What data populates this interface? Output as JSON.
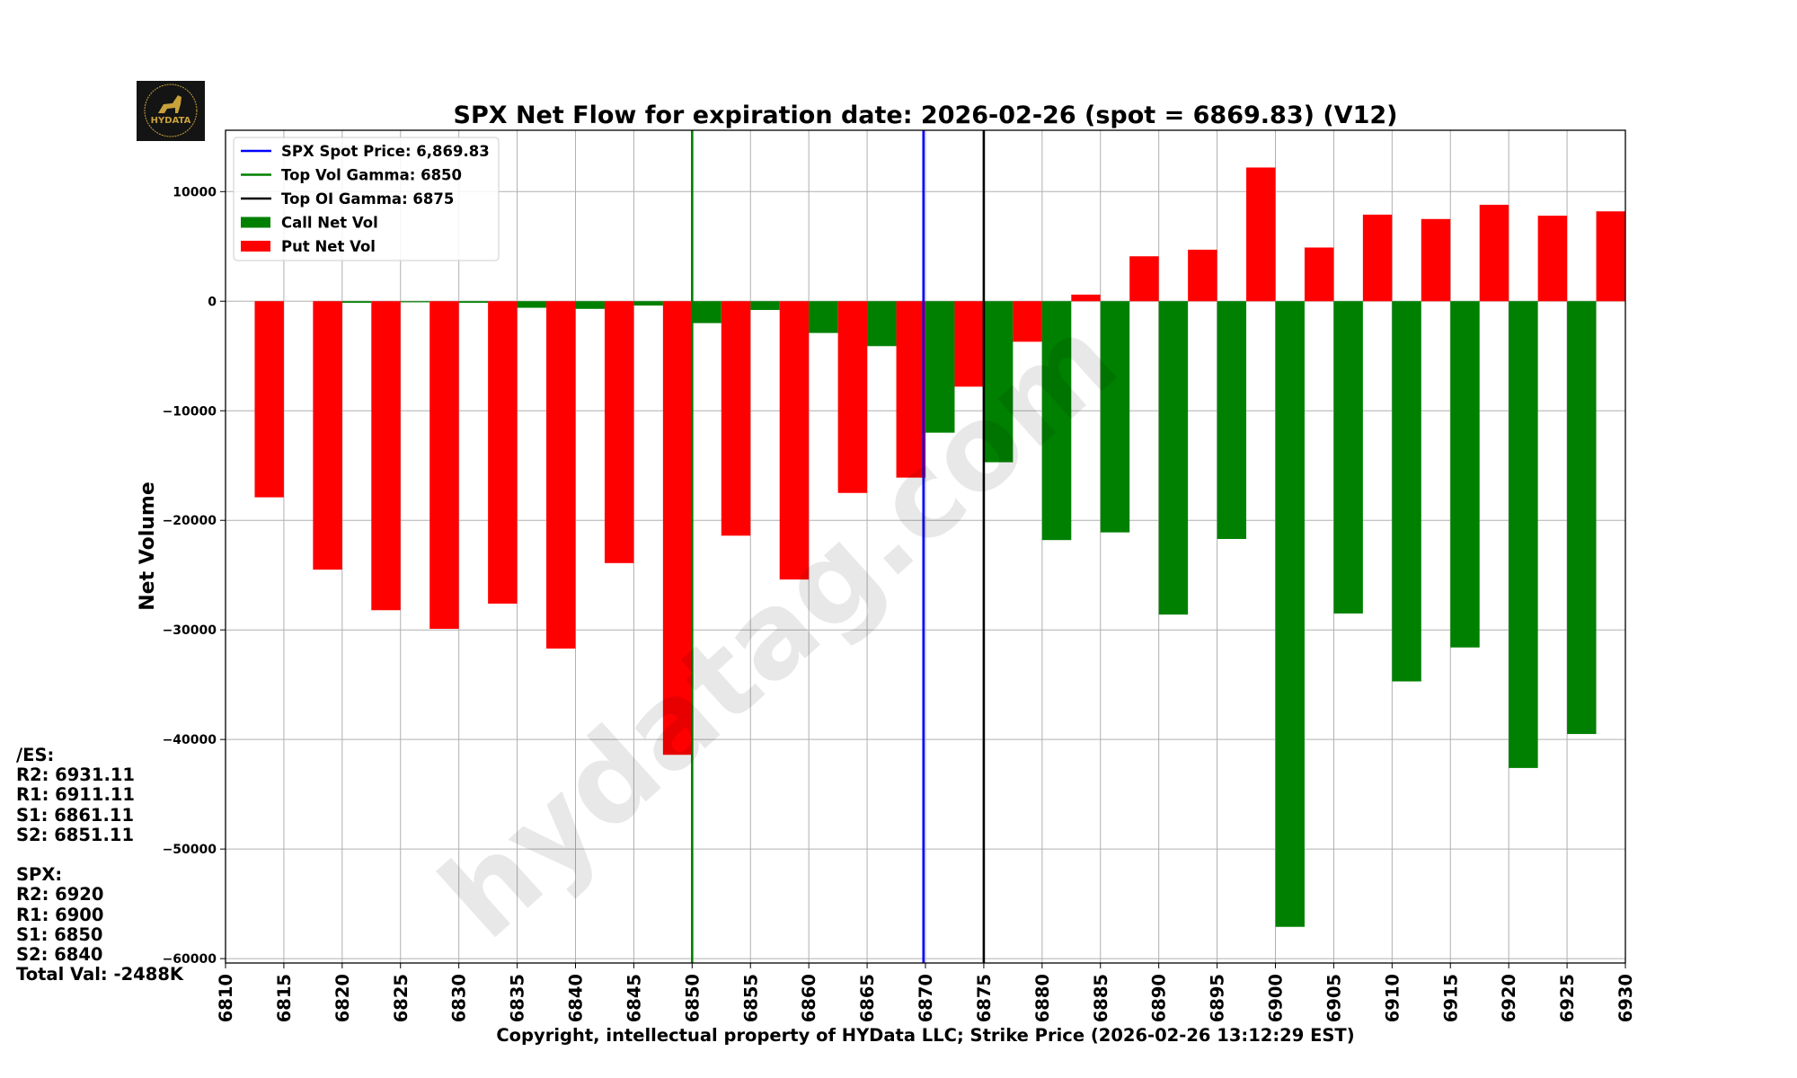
{
  "logo_text": "HYDATA",
  "watermark": "hydatag.com",
  "chart_data": {
    "type": "bar",
    "title": "SPX Net Flow for expiration date: 2026-02-26 (spot = 6869.83) (V12)",
    "xlabel": "Copyright, intellectual property of HYData LLC; Strike Price (2026-02-26 13:12:29 EST)",
    "ylabel": "Net Volume",
    "xlim": [
      6810,
      6930
    ],
    "ylim": [
      -60400,
      15600
    ],
    "xticks": [
      "6810",
      "6815",
      "6820",
      "6825",
      "6830",
      "6835",
      "6840",
      "6845",
      "6850",
      "6855",
      "6860",
      "6865",
      "6870",
      "6875",
      "6880",
      "6885",
      "6890",
      "6895",
      "6900",
      "6905",
      "6910",
      "6915",
      "6920",
      "6925",
      "6930"
    ],
    "yticks": [
      "10000",
      "0",
      "−10000",
      "−20000",
      "−30000",
      "−40000",
      "−50000",
      "−60000"
    ],
    "grid": true,
    "legend_position": "top-left",
    "series": [
      {
        "name": "Call Net Vol",
        "color": "#008000",
        "strikes": [
          6815,
          6820,
          6825,
          6830,
          6835,
          6840,
          6845,
          6850,
          6855,
          6860,
          6865,
          6870,
          6875,
          6880,
          6885,
          6890,
          6895,
          6900,
          6905,
          6910,
          6915,
          6920,
          6925
        ],
        "values": [
          0,
          -150,
          -100,
          -150,
          -600,
          -700,
          -400,
          -2000,
          -800,
          -2900,
          -4100,
          -12000,
          -14700,
          -21800,
          -21100,
          -28600,
          -21700,
          -57100,
          -28500,
          -34700,
          -31600,
          -42600,
          -39500
        ]
      },
      {
        "name": "Put Net Vol",
        "color": "#ff0000",
        "strikes": [
          6815,
          6820,
          6825,
          6830,
          6835,
          6840,
          6845,
          6850,
          6855,
          6860,
          6865,
          6870,
          6875,
          6880,
          6885,
          6890,
          6895,
          6900,
          6905,
          6910,
          6915,
          6920,
          6925,
          6930
        ],
        "values": [
          -17900,
          -24500,
          -28200,
          -29900,
          -27600,
          -31700,
          -23900,
          -41400,
          -21400,
          -25400,
          -17500,
          -16100,
          -7800,
          -3700,
          600,
          4100,
          4700,
          12200,
          4900,
          7900,
          7500,
          8800,
          7800,
          8200
        ]
      }
    ],
    "vlines": [
      {
        "label": "SPX Spot Price: 6,869.83",
        "x": 6869.83,
        "color": "#0000ff"
      },
      {
        "label": "Top Vol Gamma: 6850",
        "x": 6850,
        "color": "#008000"
      },
      {
        "label": "Top OI Gamma: 6875",
        "x": 6875,
        "color": "#000000"
      }
    ]
  },
  "levels": {
    "es_header": "/ES:",
    "es": [
      "R2: 6931.11",
      "R1: 6911.11",
      "S1: 6861.11",
      "S2: 6851.11"
    ],
    "spx_header": "SPX:",
    "spx": [
      "R2: 6920",
      "R1: 6900",
      "S1: 6850",
      "S2: 6840"
    ],
    "total": "Total Val: -2488K"
  }
}
